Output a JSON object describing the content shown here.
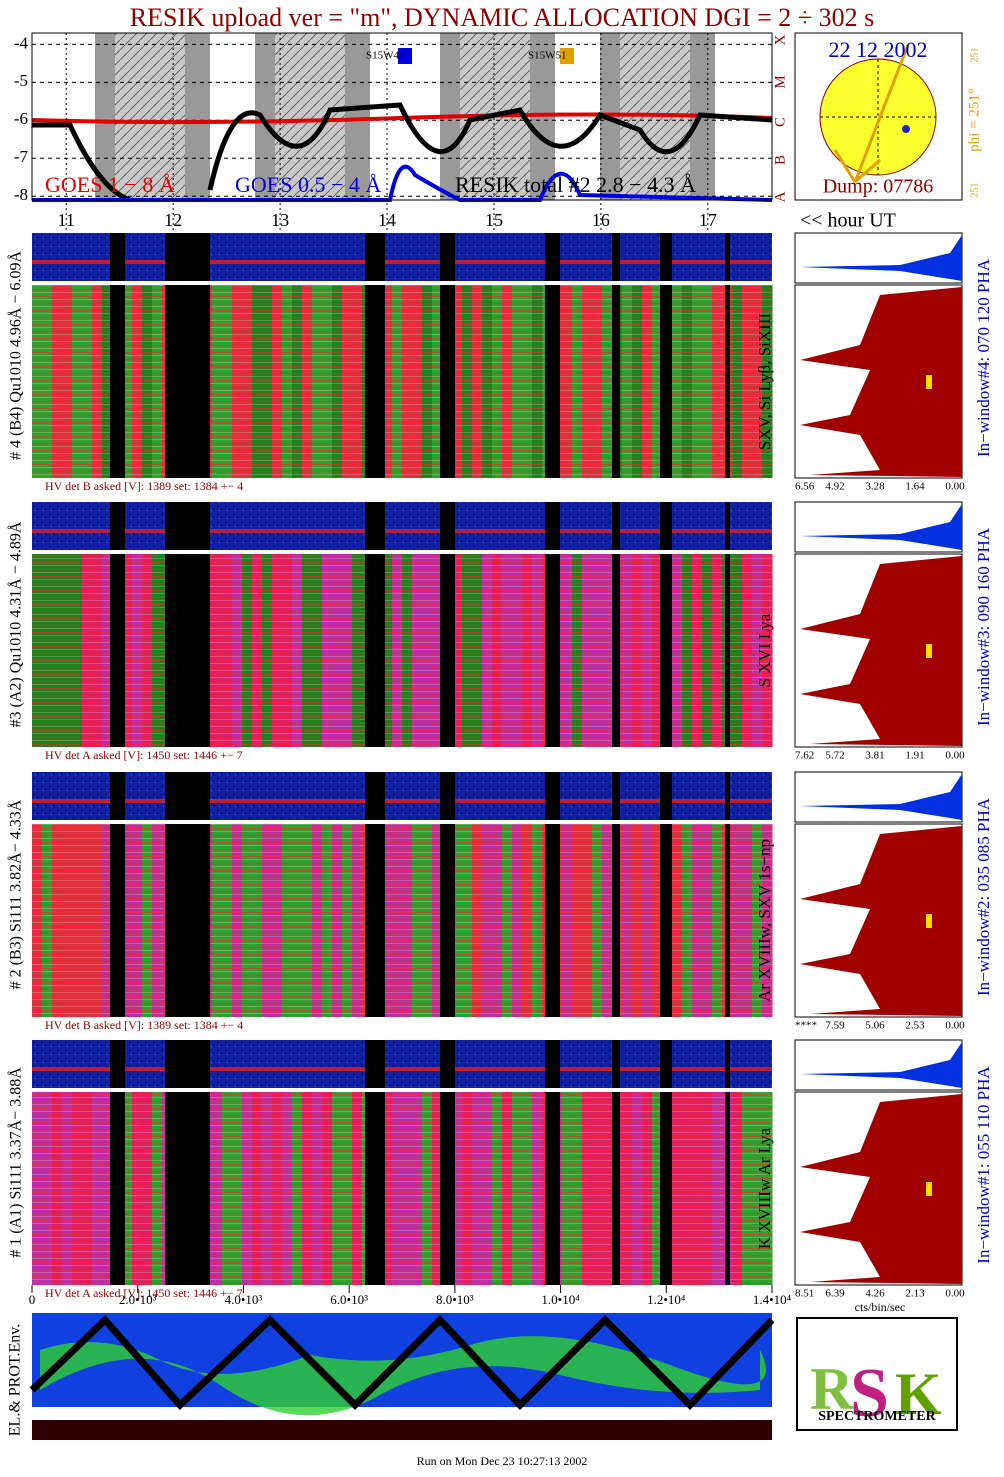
{
  "title": "RESIK upload ver = \"m\", DYNAMIC ALLOCATION  DGI =   2 ÷ 302 s",
  "lightcurve": {
    "ylim": [
      -8.1,
      -3.7
    ],
    "yticks": [
      -4,
      -5,
      -6,
      -7,
      -8
    ],
    "class_labels": [
      "X",
      "M",
      "C",
      "B",
      "A"
    ],
    "legend": [
      {
        "text": "GOES 1 − 8 Å",
        "color": "#e00000"
      },
      {
        "text": "GOES 0.5 − 4 Å",
        "color": "#0000e0"
      },
      {
        "text": "RESIK total #2  2.8 − 4.3 Å",
        "color": "#000000"
      }
    ],
    "flare_labels": [
      "S15W47",
      "S15W51"
    ]
  },
  "sun": {
    "date": "22 12 2002",
    "dump": "Dump: 07786",
    "phi": "phi = 251°",
    "phi_ticks": [
      "251",
      "251"
    ]
  },
  "hours": {
    "xlim": [
      10.68,
      17.6
    ],
    "ticks": [
      11,
      12,
      13,
      14,
      15,
      16,
      17
    ],
    "label": "<< hour UT"
  },
  "channels": [
    {
      "label": "# 4 (B4) Qu1010 4.96Å − 6.09Å",
      "lines": "SXV, Si Lyβ, SiXIII",
      "window": "In−window#4:  070 120 PHA",
      "hv": "HV det B asked [V]:  1389 set:  1384 +−    4",
      "pha_ticks": [
        "6.56",
        "4.92",
        "3.28",
        "1.64",
        "0.00"
      ]
    },
    {
      "label": "#3 (A2) Qu1010  4.31Å − 4.89Å",
      "lines": "S XVI Lya",
      "window": "In−window#3:  090 160 PHA",
      "hv": "HV det A asked [V]:  1450 set:  1446 +−    7",
      "pha_ticks": [
        "7.62",
        "5.72",
        "3.81",
        "1.91",
        "0.00"
      ]
    },
    {
      "label": "# 2 (B3) Si111  3.82Å− 4.33Å",
      "lines": "Ar XVIIIw,  SXV 1s−np",
      "window": "In−window#2:  035 085 PHA",
      "hv": "HV det B asked [V]:  1389 set:  1384 +−    4",
      "pha_ticks": [
        "****",
        "7.59",
        "5.06",
        "2.53",
        "0.00"
      ]
    },
    {
      "label": "# 1 (A1) Si111  3.37Å− 3.88Å",
      "lines": "K XVIIIw  Ar Lya",
      "window": "In−window#1:  055 110 PHA",
      "hv": "HV det A asked [V]:  1450 set:  1446 +−    7",
      "pha_ticks": [
        "8.51",
        "6.39",
        "4.26",
        "2.13",
        "0.00"
      ]
    }
  ],
  "counts_axis": {
    "xlim": [
      0,
      14000
    ],
    "xticks": [
      0,
      {
        "value": 2000,
        "label": "2.0•10³"
      },
      {
        "value": 4000,
        "label": "4.0•10³"
      },
      {
        "value": 6000,
        "label": "6.0•10³"
      },
      {
        "value": 8000,
        "label": "8.0•10³"
      },
      {
        "value": 10000,
        "label": "1.0•10⁴"
      },
      {
        "value": 12000,
        "label": "1.2•10⁴"
      },
      {
        "value": 14000,
        "label": "1.4•10⁴"
      }
    ],
    "label": "cts/bin/sec"
  },
  "env_label": "EL.& PROT.Env.",
  "logo": {
    "name": "SPECTROMETER"
  },
  "footer": "Run on Mon Dec 23 10:27:13 2002"
}
